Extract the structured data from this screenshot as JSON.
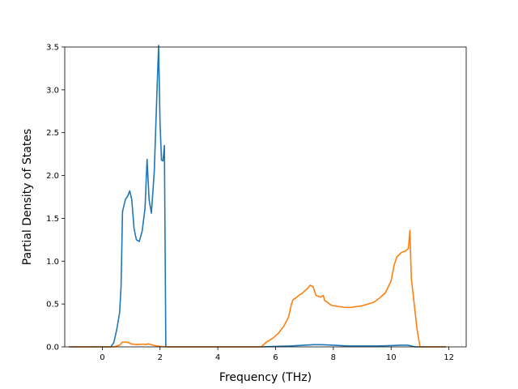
{
  "chart_data": {
    "type": "line",
    "title": "",
    "xlabel": "Frequency (THz)",
    "ylabel": "Partial Density of States",
    "xlim": [
      -1.3,
      12.6
    ],
    "ylim": [
      0,
      3.5
    ],
    "xticks": [
      0,
      2,
      4,
      6,
      8,
      10,
      12
    ],
    "yticks": [
      0.0,
      0.5,
      1.0,
      1.5,
      2.0,
      2.5,
      3.0,
      3.5
    ],
    "xtick_labels": [
      "0",
      "2",
      "4",
      "6",
      "8",
      "10",
      "12"
    ],
    "ytick_labels": [
      "0.0",
      "0.5",
      "1.0",
      "1.5",
      "2.0",
      "2.5",
      "3.0",
      "3.5"
    ],
    "grid": false,
    "legend": "none",
    "series": [
      {
        "color": "#1f77b4",
        "x": [
          -1.15,
          0.0,
          0.3,
          0.4,
          0.5,
          0.6,
          0.65,
          0.7,
          0.8,
          0.88,
          0.95,
          1.02,
          1.1,
          1.18,
          1.28,
          1.38,
          1.48,
          1.55,
          1.62,
          1.7,
          1.8,
          1.88,
          1.95,
          2.0,
          2.05,
          2.1,
          2.15,
          2.2,
          2.25,
          2.32,
          2.4,
          3.0,
          5.5,
          6.0,
          6.5,
          7.0,
          7.3,
          7.6,
          8.0,
          8.5,
          9.0,
          9.5,
          10.0,
          10.3,
          10.55,
          10.65,
          10.75,
          10.85,
          11.0,
          11.9
        ],
        "y": [
          0.0,
          0.0,
          0.0,
          0.05,
          0.2,
          0.4,
          0.7,
          1.58,
          1.72,
          1.76,
          1.82,
          1.72,
          1.38,
          1.25,
          1.23,
          1.35,
          1.62,
          2.19,
          1.72,
          1.56,
          2.05,
          2.85,
          3.52,
          2.6,
          2.18,
          2.17,
          2.35,
          0.0,
          0.0,
          0.0,
          0.0,
          0.0,
          0.0,
          0.005,
          0.01,
          0.02,
          0.025,
          0.025,
          0.02,
          0.01,
          0.01,
          0.01,
          0.015,
          0.02,
          0.02,
          0.015,
          0.005,
          0.0,
          0.0,
          0.0
        ]
      },
      {
        "color": "#ff7f0e",
        "x": [
          -1.15,
          0.0,
          0.4,
          0.5,
          0.6,
          0.7,
          0.8,
          0.9,
          1.0,
          1.1,
          1.2,
          1.3,
          1.4,
          1.5,
          1.6,
          1.8,
          2.0,
          2.2,
          2.4,
          3.0,
          5.0,
          5.5,
          5.7,
          5.9,
          6.1,
          6.3,
          6.45,
          6.55,
          6.6,
          6.7,
          6.8,
          6.9,
          7.0,
          7.1,
          7.2,
          7.3,
          7.4,
          7.55,
          7.65,
          7.7,
          7.8,
          7.9,
          8.0,
          8.2,
          8.4,
          8.6,
          8.8,
          9.0,
          9.2,
          9.4,
          9.6,
          9.8,
          9.9,
          10.0,
          10.1,
          10.2,
          10.35,
          10.5,
          10.6,
          10.65,
          10.7,
          10.8,
          10.9,
          11.0,
          11.9
        ],
        "y": [
          0.0,
          0.0,
          0.0,
          0.01,
          0.02,
          0.055,
          0.058,
          0.05,
          0.035,
          0.03,
          0.028,
          0.03,
          0.032,
          0.028,
          0.035,
          0.015,
          0.005,
          0.0,
          0.0,
          0.0,
          0.0,
          0.0,
          0.06,
          0.1,
          0.16,
          0.25,
          0.35,
          0.5,
          0.55,
          0.57,
          0.6,
          0.62,
          0.65,
          0.68,
          0.72,
          0.7,
          0.6,
          0.58,
          0.6,
          0.54,
          0.52,
          0.49,
          0.48,
          0.47,
          0.46,
          0.46,
          0.47,
          0.48,
          0.5,
          0.52,
          0.57,
          0.63,
          0.7,
          0.77,
          0.95,
          1.05,
          1.1,
          1.12,
          1.15,
          1.36,
          0.8,
          0.5,
          0.2,
          0.0,
          0.0
        ]
      }
    ]
  }
}
